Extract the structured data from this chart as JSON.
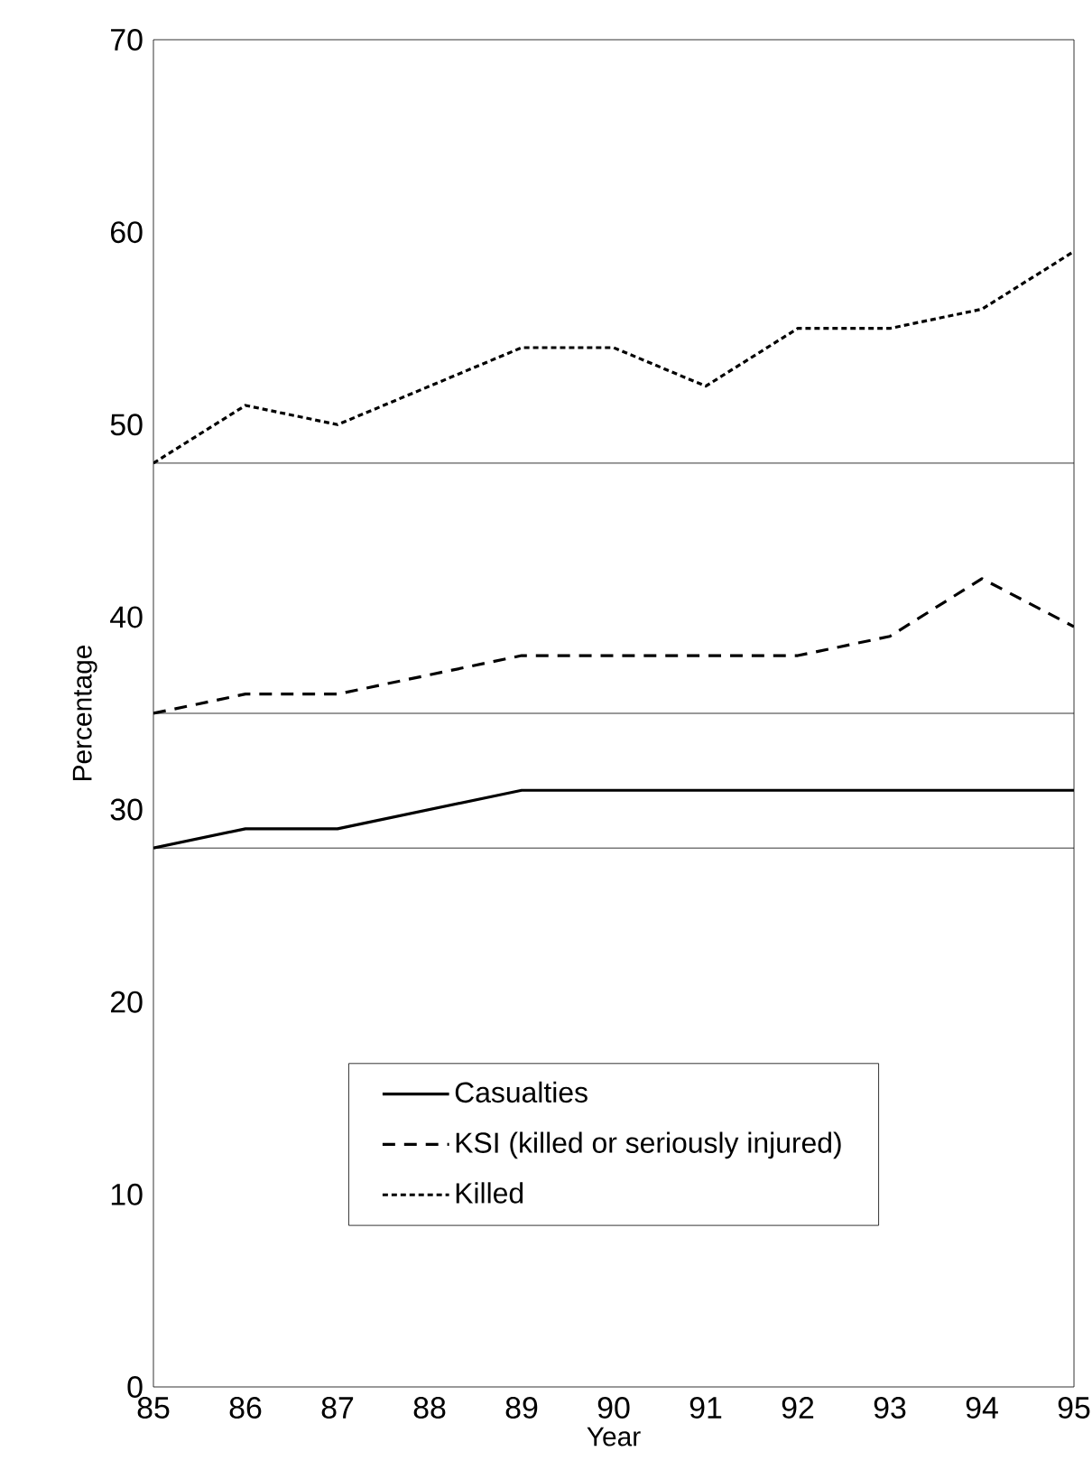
{
  "chart_data": {
    "type": "line",
    "xlabel": "Year",
    "ylabel": "Percentage",
    "x": [
      85,
      86,
      87,
      88,
      89,
      90,
      91,
      92,
      93,
      94,
      95
    ],
    "series": [
      {
        "name": "Casualties",
        "color": "#000000",
        "line_style": "solid",
        "values": [
          28,
          29,
          29,
          30,
          31,
          31,
          31,
          31,
          31,
          31,
          31
        ]
      },
      {
        "name": "KSI (killed or seriously injured)",
        "color": "#000000",
        "line_style": "dashed",
        "values": [
          35,
          36,
          36,
          37,
          38,
          38,
          38,
          38,
          39,
          42,
          39.5
        ]
      },
      {
        "name": "Killed",
        "color": "#000000",
        "line_style": "dotted",
        "values": [
          48,
          51,
          50,
          52,
          54,
          54,
          52,
          55,
          55,
          56,
          59
        ]
      }
    ],
    "xlim": [
      85,
      95
    ],
    "ylim": [
      0,
      70
    ],
    "xticks": [
      85,
      86,
      87,
      88,
      89,
      90,
      91,
      92,
      93,
      94,
      95
    ],
    "yticks": [
      0,
      10,
      20,
      30,
      40,
      50,
      60,
      70
    ],
    "ref_lines": [
      {
        "axis": "y",
        "value": 48
      },
      {
        "axis": "y",
        "value": 35
      },
      {
        "axis": "y",
        "value": 28
      }
    ],
    "grid": false,
    "legend": "bottom",
    "marker": "none"
  }
}
